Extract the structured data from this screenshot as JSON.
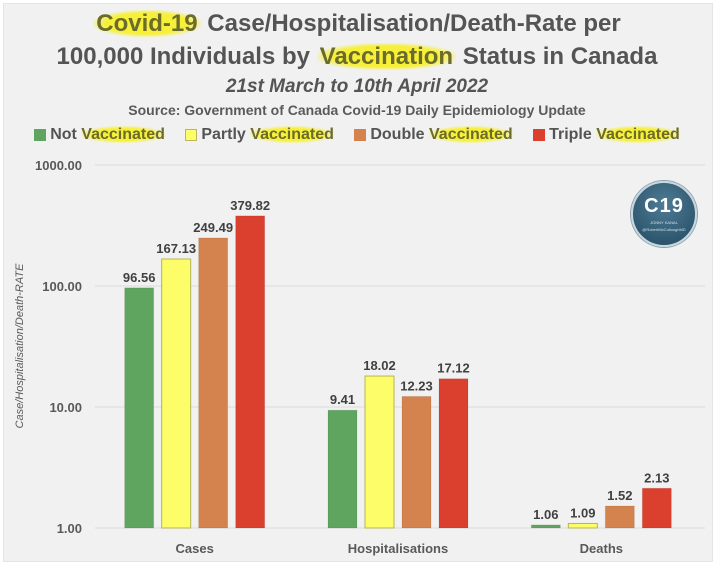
{
  "header": {
    "title_line1_highlight": "Covid-19",
    "title_line1_rest": " Case/Hospitalisation/Death-Rate per",
    "title_line2_pre": "100,000 Individuals by ",
    "title_line2_highlight": "Vaccination",
    "title_line2_post": " Status in Canada",
    "date_range": "21st March to 10th April 2022",
    "source": "Source: Government of Canada Covid-19 Daily Epidemiology Update"
  },
  "legend": [
    {
      "prefix": "Not ",
      "highlight": "Vaccinated",
      "color": "#5fa55f"
    },
    {
      "prefix": "Partly ",
      "highlight": "Vaccinated",
      "color": "#fdfd6a"
    },
    {
      "prefix": "Double ",
      "highlight": "Vaccinated",
      "color": "#d4824e"
    },
    {
      "prefix": "Triple ",
      "highlight": "Vaccinated",
      "color": "#db3f2e"
    }
  ],
  "badge": {
    "main": "C19",
    "sub1": "JONNY KANAL",
    "sub2": "@RobertMcCulloughMD"
  },
  "chart_data": {
    "type": "bar",
    "title": "Covid-19 Case/Hospitalisation/Death-Rate per 100,000 Individuals by Vaccination Status in Canada",
    "subtitle": "21st March to 10th April 2022",
    "xlabel": "",
    "ylabel": "Case/Hospitalisation/Death-RATE",
    "yscale": "log",
    "ylim": [
      1,
      1000
    ],
    "yticks": [
      1,
      10,
      100,
      1000
    ],
    "ytick_labels": [
      "1.00",
      "10.00",
      "100.00",
      "1000.00"
    ],
    "grid": true,
    "legend_position": "top",
    "categories": [
      "Cases",
      "Hospitalisations",
      "Deaths"
    ],
    "series": [
      {
        "name": "Not Vaccinated",
        "color": "#5fa55f",
        "values": [
          96.56,
          9.41,
          1.06
        ],
        "labels": [
          "96.56",
          "9.41",
          "1.06"
        ]
      },
      {
        "name": "Partly Vaccinated",
        "color": "#fdfd6a",
        "values": [
          167.13,
          18.02,
          1.09
        ],
        "labels": [
          "167.13",
          "18.02",
          "1.09"
        ]
      },
      {
        "name": "Double Vaccinated",
        "color": "#d4824e",
        "values": [
          249.49,
          12.23,
          1.52
        ],
        "labels": [
          "249.49",
          "12.23",
          "1.52"
        ]
      },
      {
        "name": "Triple Vaccinated",
        "color": "#db3f2e",
        "values": [
          379.82,
          17.12,
          2.13
        ],
        "labels": [
          "379.82",
          "17.12",
          "2.13"
        ]
      }
    ]
  }
}
